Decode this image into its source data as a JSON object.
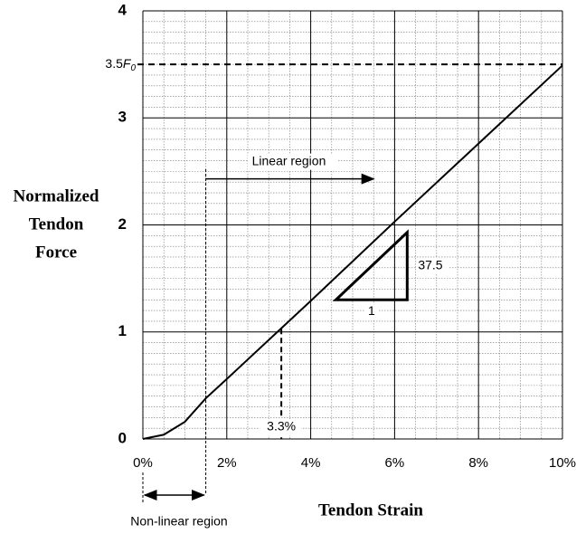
{
  "chart_data": {
    "type": "line",
    "x_title": "Tendon Strain",
    "y_title": [
      "Normalized",
      "Tendon",
      "Force"
    ],
    "x": [
      0,
      0.5,
      1,
      1.5,
      2,
      4,
      6,
      8,
      10
    ],
    "series": [
      {
        "color": "#000000",
        "values": [
          0,
          0.04,
          0.16,
          0.38,
          0.56,
          1.29,
          2.03,
          2.76,
          3.49
        ]
      }
    ],
    "xlim": [
      0,
      10
    ],
    "ylim": [
      0,
      4
    ],
    "xticks": [
      {
        "value": 0,
        "label": "0%"
      },
      {
        "value": 2,
        "label": "2%"
      },
      {
        "value": 4,
        "label": "4%"
      },
      {
        "value": 6,
        "label": "6%"
      },
      {
        "value": 8,
        "label": "8%"
      },
      {
        "value": 10,
        "label": "10%"
      }
    ],
    "yticks": [
      0,
      1,
      2,
      3,
      4
    ],
    "grid": true,
    "minor_grid": {
      "x": 0.5,
      "y": 0.1
    },
    "hline": {
      "value": 3.5,
      "label_parts": [
        "3.5",
        "F",
        "0"
      ]
    },
    "linear_region": {
      "label": "Linear region",
      "x_start": 1.5,
      "x_end": 5.5,
      "y": 2.43,
      "line_top": 2.52
    },
    "nonlinear_region": {
      "label": "Non-linear region",
      "x_start": 0,
      "x_end": 1.5
    },
    "strain_marker": {
      "x": 3.3,
      "y": 1.03,
      "label": "3.3%"
    },
    "slope_triangle": {
      "x0": 4.6,
      "x1": 6.3,
      "y0": 1.3,
      "y1": 1.93,
      "run_label": "1",
      "rise_label": "37.5"
    }
  }
}
